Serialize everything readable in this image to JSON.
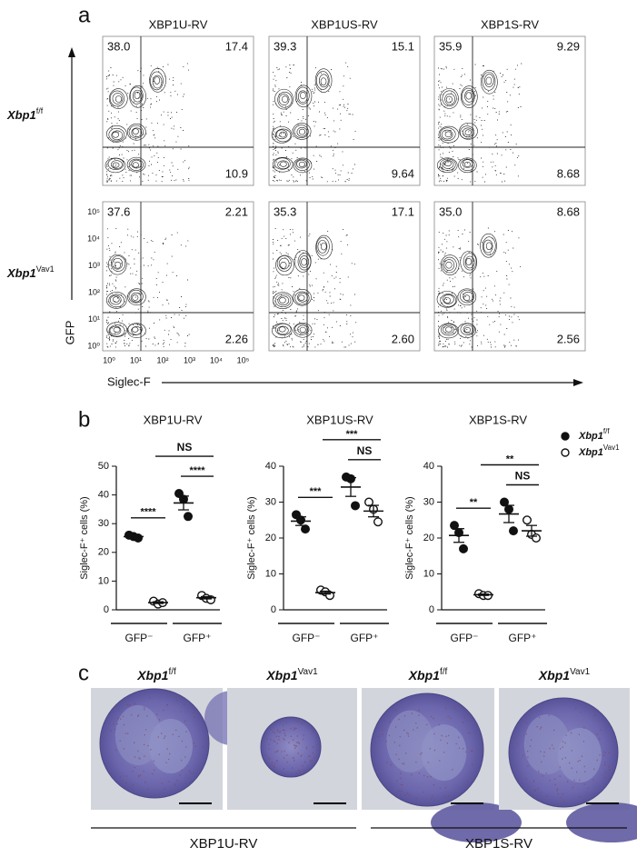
{
  "panel_a": {
    "label": "a",
    "columns": [
      "XBP1U-RV",
      "XBP1US-RV",
      "XBP1S-RV"
    ],
    "rows": [
      {
        "gene": "Xbp1",
        "sup": "f/f"
      },
      {
        "gene": "Xbp1",
        "sup": "Vav1"
      }
    ],
    "quadrants": [
      [
        [
          "38.0",
          "17.4",
          "10.9"
        ],
        [
          "39.3",
          "15.1",
          "9.64"
        ],
        [
          "35.9",
          "9.29",
          "8.68"
        ]
      ],
      [
        [
          "37.6",
          "2.21",
          "2.26"
        ],
        [
          "35.3",
          "17.1",
          "2.60"
        ],
        [
          "35.0",
          "8.68",
          "2.56"
        ]
      ]
    ],
    "y_axis_label": "GFP",
    "x_axis_label": "Siglec-F",
    "axis_ticks": [
      "10⁰",
      "10¹",
      "10²",
      "10³",
      "10⁴",
      "10⁵"
    ]
  },
  "panel_b": {
    "label": "b",
    "legend": [
      {
        "gene": "Xbp1",
        "sup": "f/f"
      },
      {
        "gene": "Xbp1",
        "sup": "Vav1"
      }
    ]
  },
  "chart_data": [
    {
      "type": "dot",
      "title": "XBP1U-RV",
      "y_label": "Siglec-F⁺ cells (%)",
      "categories": [
        "GFP⁻",
        "GFP⁺"
      ],
      "ylim": [
        0,
        50
      ],
      "yticks": [
        0,
        10,
        20,
        30,
        40,
        50
      ],
      "series": [
        {
          "marker": "filled",
          "color": "#111111",
          "points": [
            [
              26,
              25.5,
              25
            ],
            [
              40.5,
              38.5,
              32.5
            ]
          ],
          "mean": [
            25.5,
            37.2
          ],
          "sem": [
            0.3,
            2.4
          ]
        },
        {
          "marker": "open",
          "color": "#111111",
          "points": [
            [
              3,
              2,
              2.5
            ],
            [
              5,
              4,
              3.5
            ]
          ],
          "mean": [
            2.5,
            4.2
          ],
          "sem": [
            0.3,
            0.4
          ]
        }
      ],
      "comparisons": [
        {
          "label": "****",
          "between": [
            0,
            1
          ]
        },
        {
          "label": "****",
          "between": [
            2,
            3
          ]
        },
        {
          "label": "NS",
          "between": [
            1,
            3
          ]
        }
      ]
    },
    {
      "type": "dot",
      "title": "XBP1US-RV",
      "y_label": "Siglec-F⁺ cells (%)",
      "categories": [
        "GFP⁻",
        "GFP⁺"
      ],
      "ylim": [
        0,
        40
      ],
      "yticks": [
        0,
        10,
        20,
        30,
        40
      ],
      "series": [
        {
          "marker": "filled",
          "color": "#111111",
          "points": [
            [
              26.5,
              25,
              22.5
            ],
            [
              37,
              36.5,
              29
            ]
          ],
          "mean": [
            24.7,
            34.2
          ],
          "sem": [
            1.2,
            2.6
          ]
        },
        {
          "marker": "open",
          "color": "#111111",
          "points": [
            [
              5.5,
              5,
              4
            ],
            [
              30,
              28,
              24.5
            ]
          ],
          "mean": [
            4.8,
            27.5
          ],
          "sem": [
            0.4,
            1.6
          ]
        }
      ],
      "comparisons": [
        {
          "label": "***",
          "between": [
            0,
            1
          ]
        },
        {
          "label": "NS",
          "between": [
            2,
            3
          ]
        },
        {
          "label": "***",
          "between": [
            1,
            3
          ]
        }
      ]
    },
    {
      "type": "dot",
      "title": "XBP1S-RV",
      "y_label": "Siglec-F⁺ cells (%)",
      "categories": [
        "GFP⁻",
        "GFP⁺"
      ],
      "ylim": [
        0,
        40
      ],
      "yticks": [
        0,
        10,
        20,
        30,
        40
      ],
      "series": [
        {
          "marker": "filled",
          "color": "#111111",
          "points": [
            [
              23.5,
              21.5,
              17
            ],
            [
              30,
              28,
              22
            ]
          ],
          "mean": [
            20.7,
            26.7
          ],
          "sem": [
            1.9,
            2.4
          ]
        },
        {
          "marker": "open",
          "color": "#111111",
          "points": [
            [
              4.5,
              4,
              4
            ],
            [
              25,
              21,
              20
            ]
          ],
          "mean": [
            4.2,
            22
          ],
          "sem": [
            0.2,
            1.5
          ]
        }
      ],
      "comparisons": [
        {
          "label": "**",
          "between": [
            0,
            1
          ]
        },
        {
          "label": "NS",
          "between": [
            2,
            3
          ]
        },
        {
          "label": "**",
          "between": [
            1,
            3
          ]
        }
      ]
    }
  ],
  "panel_c": {
    "label": "c",
    "images": [
      {
        "gene": "Xbp1",
        "sup": "f/f"
      },
      {
        "gene": "Xbp1",
        "sup": "Vav1"
      },
      {
        "gene": "Xbp1",
        "sup": "f/f"
      },
      {
        "gene": "Xbp1",
        "sup": "Vav1"
      }
    ],
    "groups": [
      "XBP1U-RV",
      "XBP1S-RV"
    ]
  }
}
